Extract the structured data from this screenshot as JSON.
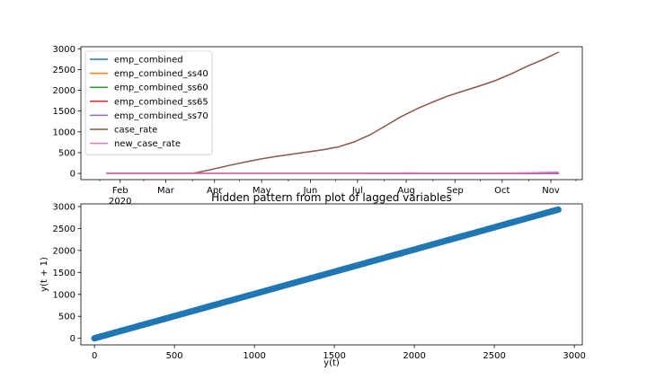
{
  "chart_data": [
    {
      "type": "line",
      "x_ticks_major": [
        "Feb",
        "Mar",
        "Apr",
        "May",
        "Jun",
        "Jul",
        "Aug",
        "Sep",
        "Oct",
        "Nov"
      ],
      "x_year_label": "2020",
      "x_major_day": [
        31,
        60,
        91,
        121,
        152,
        182,
        213,
        244,
        274,
        305
      ],
      "x_minor_day": [
        18,
        46,
        77,
        107,
        138,
        168,
        199,
        230,
        260,
        291,
        321
      ],
      "xlim_day": [
        6,
        325
      ],
      "ylim": [
        -150,
        3050
      ],
      "y_ticks": [
        0,
        500,
        1000,
        1500,
        2000,
        2500,
        3000
      ],
      "legend_position": "upper left",
      "series": [
        {
          "name": "emp_combined",
          "color": "#1f77b4",
          "x_day": [
            22,
            60,
            120,
            180,
            240,
            310
          ],
          "values": [
            0,
            0,
            0,
            0,
            0,
            0
          ]
        },
        {
          "name": "emp_combined_ss40",
          "color": "#ff7f0e",
          "x_day": [
            22,
            60,
            120,
            180,
            240,
            310
          ],
          "values": [
            0,
            0,
            0,
            0,
            0,
            0
          ]
        },
        {
          "name": "emp_combined_ss60",
          "color": "#2ca02c",
          "x_day": [
            22,
            60,
            120,
            180,
            240,
            310
          ],
          "values": [
            0,
            0,
            0,
            0,
            0,
            0
          ]
        },
        {
          "name": "emp_combined_ss65",
          "color": "#d62728",
          "x_day": [
            22,
            60,
            120,
            180,
            240,
            310
          ],
          "values": [
            0,
            0,
            0,
            0,
            0,
            0
          ]
        },
        {
          "name": "emp_combined_ss70",
          "color": "#9467bd",
          "x_day": [
            22,
            60,
            120,
            180,
            240,
            280,
            310
          ],
          "values": [
            0,
            0,
            0,
            0,
            0,
            0,
            0
          ]
        },
        {
          "name": "case_rate",
          "color": "#8c564b",
          "x_day": [
            22,
            50,
            75,
            80,
            90,
            100,
            110,
            120,
            130,
            140,
            150,
            160,
            170,
            180,
            190,
            200,
            210,
            220,
            230,
            240,
            250,
            260,
            270,
            280,
            290,
            300,
            310
          ],
          "values": [
            0,
            0,
            0,
            20,
            100,
            190,
            270,
            345,
            405,
            460,
            515,
            570,
            640,
            760,
            930,
            1150,
            1370,
            1560,
            1720,
            1870,
            1990,
            2110,
            2240,
            2400,
            2580,
            2740,
            2920
          ]
        },
        {
          "name": "new_case_rate",
          "color": "#e377c2",
          "x_day": [
            22,
            75,
            120,
            180,
            200,
            215,
            230,
            245,
            260,
            280,
            295,
            300,
            305,
            310
          ],
          "values": [
            0,
            0,
            0,
            0,
            5,
            12,
            8,
            5,
            6,
            10,
            18,
            22,
            25,
            30
          ]
        }
      ]
    },
    {
      "type": "scatter",
      "title": "Hidden pattern from plot of lagged variables",
      "xlabel": "y(t)",
      "ylabel": "y(t + 1)",
      "xlim": [
        -85,
        3050
      ],
      "ylim": [
        -150,
        3060
      ],
      "x_ticks": [
        0,
        500,
        1000,
        1500,
        2000,
        2500,
        3000
      ],
      "y_ticks": [
        0,
        500,
        1000,
        1500,
        2000,
        2500,
        3000
      ],
      "point_color": "#1f77b4",
      "x_range": [
        0,
        2900
      ],
      "y_range": [
        0,
        2930
      ],
      "n_points": 290
    }
  ]
}
